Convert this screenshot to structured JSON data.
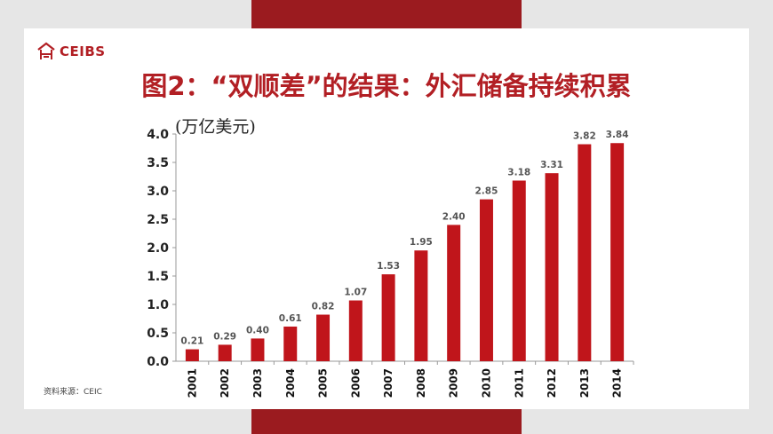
{
  "brand": {
    "logo_text": "CEIBS",
    "logo_icon": "ceibs-logo-icon"
  },
  "slide": {
    "title": "图2：“双顺差”的结果：外汇储备持续积累",
    "unit_label": "(万亿美元)",
    "source": "资料来源：CEIC"
  },
  "colors": {
    "accent": "#9b1b1f",
    "bar": "#c0151b",
    "title": "#b21f24"
  },
  "chart_data": {
    "type": "bar",
    "categories": [
      "2001",
      "2002",
      "2003",
      "2004",
      "2005",
      "2006",
      "2007",
      "2008",
      "2009",
      "2010",
      "2011",
      "2012",
      "2013",
      "2014"
    ],
    "values": [
      0.21,
      0.29,
      0.4,
      0.61,
      0.82,
      1.07,
      1.53,
      1.95,
      2.4,
      2.85,
      3.18,
      3.31,
      3.82,
      3.84
    ],
    "value_labels": [
      "0.21",
      "0.29",
      "0.40",
      "0.61",
      "0.82",
      "1.07",
      "1.53",
      "1.95",
      "2.40",
      "2.85",
      "3.18",
      "3.31",
      "3.82",
      "3.84"
    ],
    "y_ticks": [
      "0.0",
      "0.5",
      "1.0",
      "1.5",
      "2.0",
      "2.5",
      "3.0",
      "3.5",
      "4.0"
    ],
    "ylim": [
      0,
      4.0
    ],
    "grid": false,
    "legend": "none"
  }
}
